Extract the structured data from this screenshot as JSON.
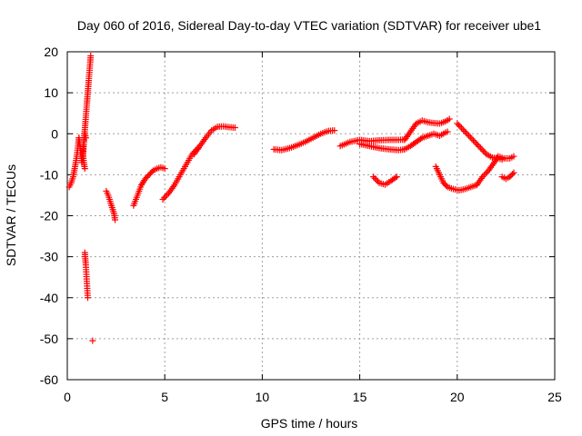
{
  "chart_data": {
    "type": "scatter",
    "title": "Day 060 of 2016, Sidereal Day-to-day VTEC variation (SDTVAR) for receiver ube1",
    "xlabel": "GPS time / hours",
    "ylabel": "SDTVAR / TECUs",
    "xlim": [
      0,
      25
    ],
    "ylim": [
      -60,
      20
    ],
    "xticks": [
      0,
      5,
      10,
      15,
      20,
      25
    ],
    "yticks": [
      -60,
      -50,
      -40,
      -30,
      -20,
      -10,
      0,
      10,
      20
    ],
    "grid": true,
    "marker": "+",
    "color": "#ff0000",
    "segments": [
      {
        "x": [
          0.1,
          0.2,
          0.3,
          0.4,
          0.5,
          0.55,
          0.6
        ],
        "y": [
          -13,
          -12,
          -10.5,
          -8,
          -5,
          -3,
          -1
        ]
      },
      {
        "x": [
          0.6,
          0.65,
          0.7,
          0.75,
          0.8,
          0.85,
          0.9,
          0.95
        ],
        "y": [
          -1,
          -3,
          -5,
          -7,
          -4,
          -2,
          0,
          -1
        ]
      },
      {
        "x": [
          0.8,
          0.85,
          0.9,
          0.95,
          1.0,
          1.05,
          1.1,
          1.15,
          1.2
        ],
        "y": [
          -6,
          -2,
          1,
          4,
          7,
          10,
          13,
          16,
          19
        ]
      },
      {
        "x": [
          0.8,
          0.85,
          0.9
        ],
        "y": [
          -5,
          -7,
          -8.5
        ]
      },
      {
        "x": [
          2.0,
          2.1,
          2.2,
          2.3,
          2.4,
          2.45
        ],
        "y": [
          -14,
          -15,
          -16.5,
          -18,
          -19.5,
          -21
        ]
      },
      {
        "x": [
          0.9,
          0.95,
          1.0,
          1.05
        ],
        "y": [
          -29,
          -32,
          -36,
          -40
        ]
      },
      {
        "x": [
          1.3
        ],
        "y": [
          -50.5
        ]
      },
      {
        "x": [
          3.4,
          3.6,
          3.8,
          4.0,
          4.2,
          4.4,
          4.6,
          4.8,
          5.0
        ],
        "y": [
          -17.5,
          -15,
          -12.5,
          -11,
          -10,
          -9,
          -8.5,
          -8.2,
          -8.5
        ]
      },
      {
        "x": [
          4.9,
          5.2,
          5.5,
          5.8,
          6.1,
          6.4,
          6.7
        ],
        "y": [
          -16,
          -14.5,
          -12.5,
          -10,
          -7.5,
          -5,
          -3.5
        ]
      },
      {
        "x": [
          6.5,
          6.8,
          7.1,
          7.4,
          7.7,
          8.0,
          8.3,
          8.6
        ],
        "y": [
          -5,
          -3,
          -1,
          0.8,
          1.7,
          1.8,
          1.6,
          1.5
        ]
      },
      {
        "x": [
          10.6,
          11.0,
          11.4,
          11.8,
          12.2,
          12.6,
          13.0,
          13.4,
          13.7
        ],
        "y": [
          -3.8,
          -4,
          -3.5,
          -2.8,
          -2,
          -1,
          0,
          0.7,
          0.8
        ]
      },
      {
        "x": [
          14.0,
          14.5,
          15.0,
          15.5,
          16.0,
          16.5,
          17.0,
          17.3
        ],
        "y": [
          -3,
          -2,
          -1.5,
          -1.8,
          -1.6,
          -1.5,
          -1.5,
          -1.4
        ]
      },
      {
        "x": [
          15.0,
          15.5,
          16.0,
          16.5,
          17.0,
          17.3
        ],
        "y": [
          -2.5,
          -3,
          -3.5,
          -3.8,
          -4,
          -3.8
        ]
      },
      {
        "x": [
          17.3,
          17.6,
          17.9,
          18.2,
          18.5,
          18.8,
          19.1,
          19.4,
          19.6
        ],
        "y": [
          -1.5,
          0.5,
          2.5,
          3.2,
          2.8,
          2.6,
          2.5,
          3.0,
          3.6
        ]
      },
      {
        "x": [
          17.3,
          17.6,
          17.9,
          18.2,
          18.5,
          18.8,
          19.1,
          19.4,
          19.5
        ],
        "y": [
          -3.8,
          -3,
          -2,
          -1,
          -0.5,
          0,
          -0.5,
          0.3,
          0.5
        ]
      },
      {
        "x": [
          15.7,
          16.0,
          16.3,
          16.6,
          16.9
        ],
        "y": [
          -10.5,
          -12,
          -12.4,
          -11.5,
          -10.5
        ]
      },
      {
        "x": [
          18.9,
          19.1,
          19.3,
          19.5,
          19.8,
          20.1,
          20.4,
          20.7,
          21.0
        ],
        "y": [
          -8,
          -10,
          -12,
          -13,
          -13.5,
          -13.8,
          -13.5,
          -13,
          -12.5
        ]
      },
      {
        "x": [
          20.0,
          20.3,
          20.6,
          20.9,
          21.2,
          21.5,
          21.8,
          22.1,
          22.3
        ],
        "y": [
          2.5,
          1,
          -0.5,
          -2,
          -3.5,
          -5,
          -5.8,
          -6,
          -6.3
        ]
      },
      {
        "x": [
          21.0,
          21.3,
          21.6,
          21.9,
          22.1,
          22.4,
          22.7,
          22.9
        ],
        "y": [
          -12.5,
          -10.5,
          -9,
          -7,
          -5.5,
          -6,
          -6,
          -5.5
        ]
      },
      {
        "x": [
          22.3,
          22.5,
          22.7,
          22.9
        ],
        "y": [
          -10.5,
          -11,
          -10.5,
          -9.5
        ]
      }
    ]
  }
}
